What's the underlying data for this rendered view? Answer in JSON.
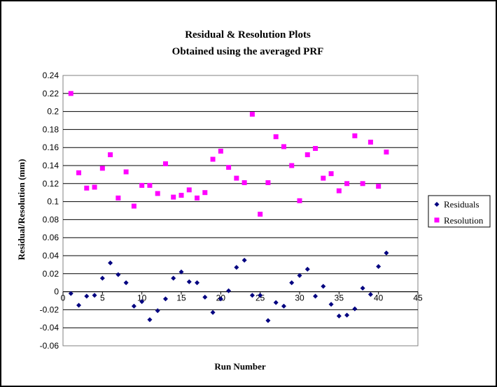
{
  "chart_data": {
    "type": "scatter",
    "title": [
      "Residual & Resolution Plots",
      "Obtained using the averaged PRF"
    ],
    "xlabel": "Run Number",
    "ylabel": "Residual/Resolution (mm)",
    "xlim": [
      0,
      45
    ],
    "ylim": [
      -0.06,
      0.24
    ],
    "xticks": [
      "0",
      "5",
      "10",
      "15",
      "20",
      "25",
      "30",
      "35",
      "40",
      "45"
    ],
    "yticks": [
      "-0.06",
      "-0.04",
      "-0.02",
      "0",
      "0.02",
      "0.04",
      "0.06",
      "0.08",
      "0.1",
      "0.12",
      "0.14",
      "0.16",
      "0.18",
      "0.2",
      "0.22",
      "0.24"
    ],
    "grid": "horizontal",
    "legend_position": "right",
    "series": [
      {
        "name": "Residuals",
        "color": "#000080",
        "marker": "diamond",
        "x": [
          1,
          2,
          3,
          4,
          5,
          6,
          7,
          8,
          9,
          10,
          11,
          12,
          13,
          14,
          15,
          16,
          17,
          18,
          19,
          20,
          21,
          22,
          23,
          24,
          25,
          26,
          27,
          28,
          29,
          30,
          31,
          32,
          33,
          34,
          35,
          36,
          37,
          38,
          39,
          40,
          41
        ],
        "y": [
          -0.002,
          -0.015,
          -0.005,
          -0.004,
          0.015,
          0.032,
          0.019,
          0.01,
          -0.016,
          -0.011,
          -0.031,
          -0.021,
          -0.008,
          0.015,
          0.022,
          0.011,
          0.01,
          -0.006,
          -0.023,
          -0.008,
          0.001,
          0.027,
          0.035,
          -0.004,
          -0.004,
          -0.032,
          -0.012,
          -0.016,
          0.01,
          0.018,
          0.025,
          -0.005,
          0.006,
          -0.014,
          -0.027,
          -0.026,
          -0.019,
          0.004,
          -0.003,
          0.028,
          0.043
        ]
      },
      {
        "name": "Resolution",
        "color": "#FF00FF",
        "marker": "square",
        "x": [
          1,
          2,
          3,
          4,
          5,
          6,
          7,
          8,
          9,
          10,
          11,
          12,
          13,
          14,
          15,
          16,
          17,
          18,
          19,
          20,
          21,
          22,
          23,
          24,
          25,
          26,
          27,
          28,
          29,
          30,
          31,
          32,
          33,
          34,
          35,
          36,
          37,
          38,
          39,
          40,
          41
        ],
        "y": [
          0.22,
          0.132,
          0.115,
          0.116,
          0.137,
          0.152,
          0.104,
          0.133,
          0.095,
          0.118,
          0.118,
          0.109,
          0.142,
          0.105,
          0.107,
          0.113,
          0.104,
          0.11,
          0.147,
          0.156,
          0.138,
          0.126,
          0.121,
          0.197,
          0.086,
          0.121,
          0.172,
          0.161,
          0.14,
          0.101,
          0.152,
          0.159,
          0.126,
          0.131,
          0.112,
          0.12,
          0.173,
          0.12,
          0.166,
          0.117,
          0.155
        ]
      }
    ]
  }
}
